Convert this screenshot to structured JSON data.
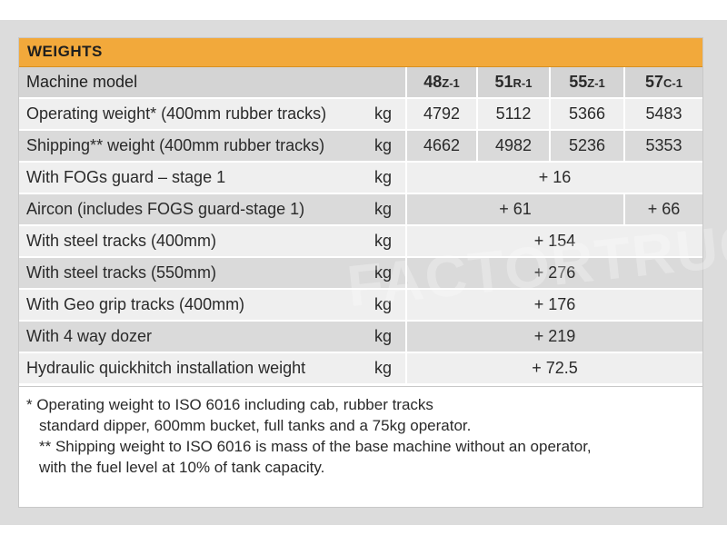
{
  "section_title": "WEIGHTS",
  "header": {
    "label": "Machine model",
    "models": [
      {
        "num": "48",
        "suffix": "Z-1"
      },
      {
        "num": "51",
        "suffix": "R-1"
      },
      {
        "num": "55",
        "suffix": "Z-1"
      },
      {
        "num": "57",
        "suffix": "C-1"
      }
    ]
  },
  "rows": [
    {
      "label": "Operating weight* (400mm rubber tracks)",
      "unit": "kg",
      "values": [
        "4792",
        "5112",
        "5366",
        "5483"
      ]
    },
    {
      "label": "Shipping** weight (400mm rubber tracks)",
      "unit": "kg",
      "values": [
        "4662",
        "4982",
        "5236",
        "5353"
      ]
    },
    {
      "label": "With FOGs guard – stage 1",
      "unit": "kg",
      "value_all": "+ 16"
    },
    {
      "label": "Aircon (includes FOGS guard-stage 1)",
      "unit": "kg",
      "value_first3": "+ 61",
      "value_last": "+ 66"
    },
    {
      "label": "With steel tracks (400mm)",
      "unit": "kg",
      "value_all": "+ 154"
    },
    {
      "label": "With steel tracks (550mm)",
      "unit": "kg",
      "value_all": "+ 276"
    },
    {
      "label": "With Geo grip tracks (400mm)",
      "unit": "kg",
      "value_all": "+ 176"
    },
    {
      "label": "With 4 way dozer",
      "unit": "kg",
      "value_all": "+ 219"
    },
    {
      "label": "Hydraulic quickhitch installation weight",
      "unit": "kg",
      "value_all": "+ 72.5"
    }
  ],
  "notes": [
    "* Operating weight to ISO 6016 including cab, rubber tracks",
    "standard dipper, 600mm bucket, full tanks and a 75kg operator.",
    "** Shipping weight to ISO 6016 is mass of the base machine without an operator,",
    "with the fuel level at 10% of tank capacity."
  ],
  "watermark": "FACTORTRUCK",
  "colors": {
    "accent": "#f2a93b",
    "row_shade": "#dadada",
    "row_light": "#efefef",
    "background": "#dcdcdc"
  }
}
